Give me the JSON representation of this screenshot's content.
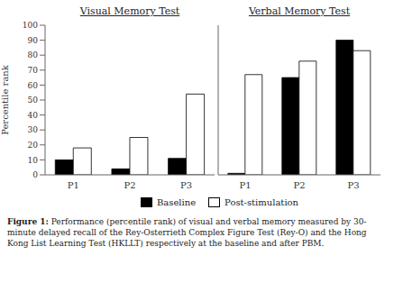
{
  "chart_data": [
    {
      "type": "bar",
      "title": "Visual Memory Test",
      "categories": [
        "P1",
        "P2",
        "P3"
      ],
      "series": [
        {
          "name": "Baseline",
          "color": "#000000",
          "values": [
            10,
            4,
            11
          ]
        },
        {
          "name": "Post-stimulation",
          "color": "#ffffff",
          "values": [
            18,
            25,
            54
          ]
        }
      ],
      "ylabel": "Percentile rank",
      "ylim": [
        0,
        100
      ],
      "yticks": [
        0,
        10,
        20,
        30,
        40,
        50,
        60,
        70,
        80,
        90,
        100
      ],
      "grid": false,
      "legend": "bottom"
    },
    {
      "type": "bar",
      "title": "Verbal Memory Test",
      "categories": [
        "P1",
        "P2",
        "P3"
      ],
      "series": [
        {
          "name": "Baseline",
          "color": "#000000",
          "values": [
            1,
            65,
            90
          ]
        },
        {
          "name": "Post-stimulation",
          "color": "#ffffff",
          "values": [
            67,
            76,
            83
          ]
        }
      ],
      "ylim": [
        0,
        100
      ],
      "yticks": [
        0,
        10,
        20,
        30,
        40,
        50,
        60,
        70,
        80,
        90,
        100
      ],
      "grid": false,
      "tick_labels": "x"
    }
  ],
  "caption": "Figure 1: Performance (percentile rank) of visual and verbal memory measured by 30-minute delayed recall of the Rey-Osterrieth Complex Figure Test (Rey-O) and the Hong Kong List Learning Test (HKLLT) respectively at the baseline and after PBM."
}
